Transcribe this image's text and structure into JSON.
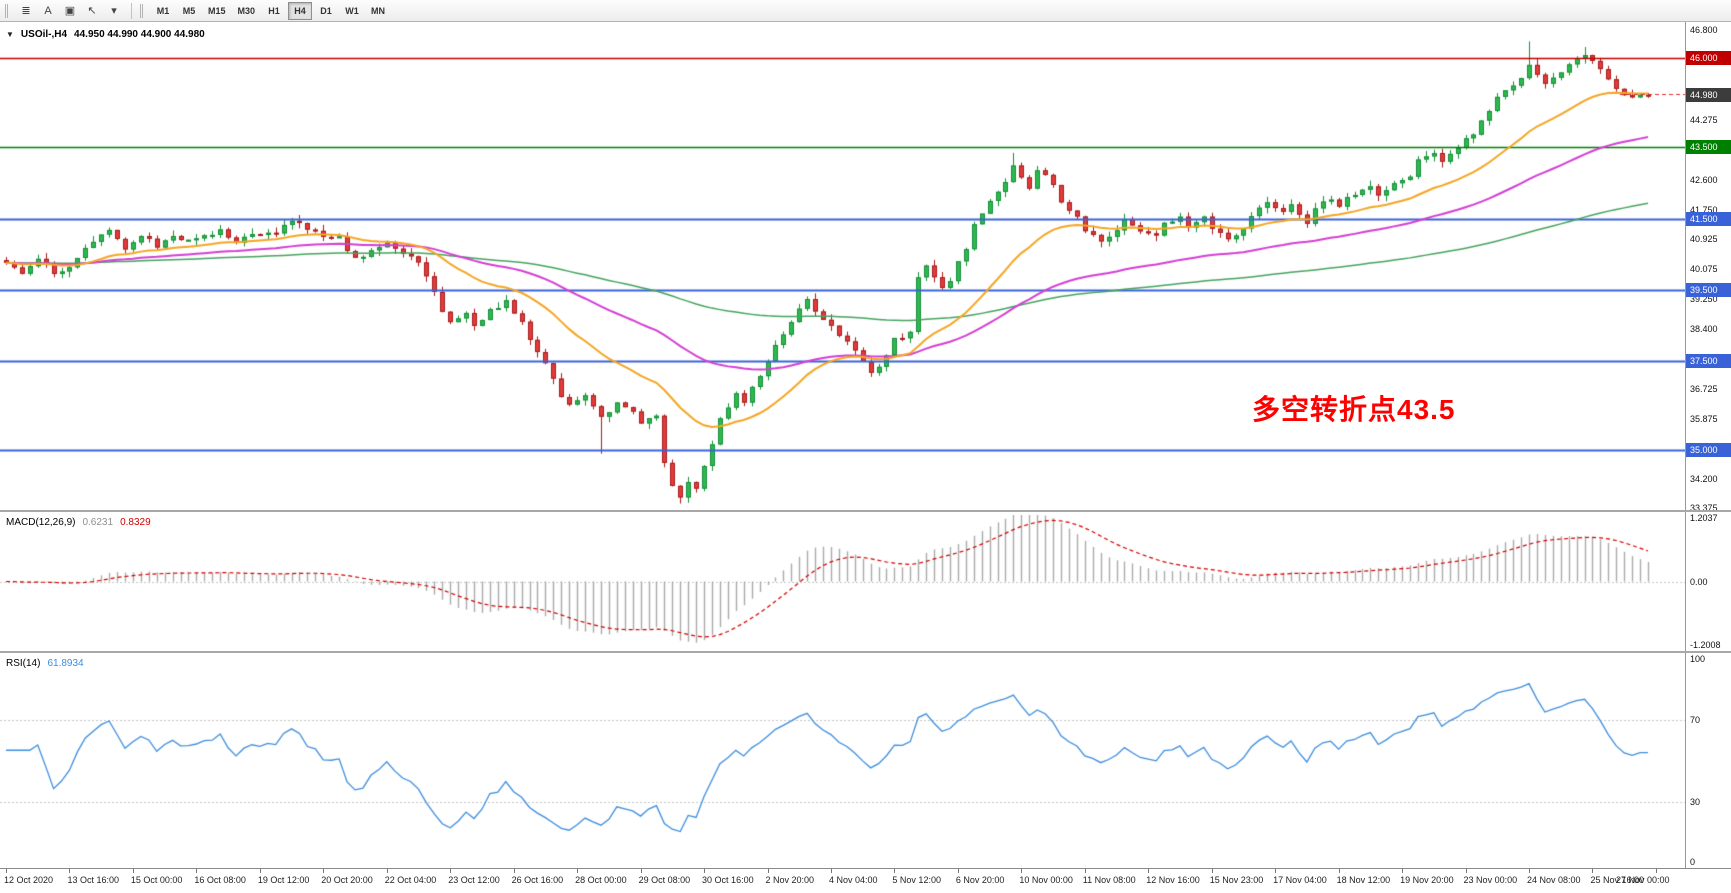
{
  "toolbar": {
    "tools": [
      {
        "name": "chart-list-icon",
        "glyph": "≣"
      },
      {
        "name": "text-label-icon",
        "glyph": "A"
      },
      {
        "name": "text-frame-icon",
        "glyph": "▣"
      },
      {
        "name": "cursor-tool-icon",
        "glyph": "↖"
      },
      {
        "name": "dropdown-arrow-icon",
        "glyph": "▾"
      }
    ],
    "timeframes": [
      {
        "label": "M1",
        "active": false
      },
      {
        "label": "M5",
        "active": false
      },
      {
        "label": "M15",
        "active": false
      },
      {
        "label": "M30",
        "active": false
      },
      {
        "label": "H1",
        "active": false
      },
      {
        "label": "H4",
        "active": true
      },
      {
        "label": "D1",
        "active": false
      },
      {
        "label": "W1",
        "active": false
      },
      {
        "label": "MN",
        "active": false
      }
    ]
  },
  "chart": {
    "header": {
      "collapse_glyph": "▼",
      "title": "USOil-,H4",
      "ohlc": "44.950 44.990 44.900 44.980"
    },
    "annotation": {
      "text": "多空转折点43.5",
      "color": "#ff0000"
    }
  },
  "chart_data": {
    "type": "candlestick",
    "symbol": "USOil-",
    "timeframe": "H4",
    "current": {
      "open": 44.95,
      "high": 44.99,
      "low": 44.9,
      "close": 44.98
    },
    "y_max": 46.8,
    "y_min": 33.375,
    "y_ticks": [
      "46.800",
      "45.950",
      "45.100",
      "44.275",
      "43.425",
      "42.600",
      "41.750",
      "40.925",
      "40.075",
      "39.250",
      "38.400",
      "37.550",
      "36.725",
      "35.875",
      "35.050",
      "34.200",
      "33.375"
    ],
    "levels": [
      {
        "price": 46.0,
        "badge": "46.000",
        "color": "#c00000",
        "width": 1.5,
        "kind": "hline"
      },
      {
        "price": 44.98,
        "badge": "44.980",
        "color": "#3c3c3c",
        "width": 1,
        "kind": "current"
      },
      {
        "price": 43.5,
        "badge": "43.500",
        "color": "#008000",
        "width": 1.5,
        "kind": "hline"
      },
      {
        "price": 41.5,
        "badge": "41.500",
        "color": "#3a62d8",
        "width": 2,
        "kind": "hline"
      },
      {
        "price": 39.5,
        "badge": "39.500",
        "color": "#3a62d8",
        "width": 2,
        "kind": "hline"
      },
      {
        "price": 37.5,
        "badge": "37.500",
        "color": "#3a62d8",
        "width": 2,
        "kind": "hline"
      },
      {
        "price": 35.0,
        "badge": "35.000",
        "color": "#3a62d8",
        "width": 2,
        "kind": "hline"
      }
    ],
    "colors": {
      "up_fill": "#2eb94e",
      "up_line": "#18903a",
      "down_fill": "#e23b3b",
      "down_line": "#a81d1d",
      "background": "#ffffff",
      "ask_line": "#e03030"
    },
    "n_candles": 208,
    "close_anchors": [
      [
        0,
        40.3
      ],
      [
        2,
        39.95
      ],
      [
        4,
        40.4
      ],
      [
        6,
        39.9
      ],
      [
        8,
        40.15
      ],
      [
        10,
        40.7
      ],
      [
        12,
        41.0
      ],
      [
        13,
        41.15
      ],
      [
        15,
        40.6
      ],
      [
        17,
        41.0
      ],
      [
        19,
        40.75
      ],
      [
        21,
        41.05
      ],
      [
        23,
        40.85
      ],
      [
        25,
        41.0
      ],
      [
        27,
        41.2
      ],
      [
        29,
        40.85
      ],
      [
        31,
        41.05
      ],
      [
        34,
        41.15
      ],
      [
        36,
        41.5
      ],
      [
        38,
        41.25
      ],
      [
        40,
        41.05
      ],
      [
        42,
        40.95
      ],
      [
        44,
        40.35
      ],
      [
        46,
        40.6
      ],
      [
        48,
        40.85
      ],
      [
        50,
        40.55
      ],
      [
        52,
        40.3
      ],
      [
        54,
        39.4
      ],
      [
        55,
        38.9
      ],
      [
        56,
        38.55
      ],
      [
        58,
        38.8
      ],
      [
        59,
        38.45
      ],
      [
        61,
        38.9
      ],
      [
        63,
        39.15
      ],
      [
        65,
        38.65
      ],
      [
        66,
        38.15
      ],
      [
        68,
        37.45
      ],
      [
        70,
        36.5
      ],
      [
        71,
        36.3
      ],
      [
        73,
        36.55
      ],
      [
        75,
        35.95
      ],
      [
        77,
        36.3
      ],
      [
        79,
        36.1
      ],
      [
        80,
        35.8
      ],
      [
        82,
        35.95
      ],
      [
        83,
        34.7
      ],
      [
        84,
        34.05
      ],
      [
        85,
        33.7
      ],
      [
        86,
        34.1
      ],
      [
        87,
        33.9
      ],
      [
        89,
        35.2
      ],
      [
        90,
        35.9
      ],
      [
        92,
        36.6
      ],
      [
        93,
        36.4
      ],
      [
        95,
        37.1
      ],
      [
        96,
        37.5
      ],
      [
        98,
        38.3
      ],
      [
        100,
        39.0
      ],
      [
        101,
        39.2
      ],
      [
        103,
        38.7
      ],
      [
        105,
        38.2
      ],
      [
        106,
        38.0
      ],
      [
        108,
        37.5
      ],
      [
        109,
        37.2
      ],
      [
        111,
        37.6
      ],
      [
        112,
        38.1
      ],
      [
        114,
        38.3
      ],
      [
        115,
        39.9
      ],
      [
        116,
        40.15
      ],
      [
        118,
        39.5
      ],
      [
        119,
        39.8
      ],
      [
        121,
        40.7
      ],
      [
        122,
        41.3
      ],
      [
        124,
        42.0
      ],
      [
        126,
        42.5
      ],
      [
        127,
        43.0
      ],
      [
        129,
        42.4
      ],
      [
        130,
        42.9
      ],
      [
        132,
        42.5
      ],
      [
        133,
        41.9
      ],
      [
        135,
        41.5
      ],
      [
        136,
        41.1
      ],
      [
        138,
        40.9
      ],
      [
        140,
        41.2
      ],
      [
        141,
        41.45
      ],
      [
        143,
        41.2
      ],
      [
        145,
        41.0
      ],
      [
        146,
        41.35
      ],
      [
        148,
        41.5
      ],
      [
        149,
        41.3
      ],
      [
        151,
        41.55
      ],
      [
        152,
        41.2
      ],
      [
        154,
        40.9
      ],
      [
        156,
        41.2
      ],
      [
        157,
        41.6
      ],
      [
        159,
        41.9
      ],
      [
        161,
        41.7
      ],
      [
        162,
        41.9
      ],
      [
        164,
        41.4
      ],
      [
        165,
        41.8
      ],
      [
        167,
        42.1
      ],
      [
        168,
        41.9
      ],
      [
        170,
        42.2
      ],
      [
        172,
        42.4
      ],
      [
        173,
        42.2
      ],
      [
        175,
        42.5
      ],
      [
        177,
        42.7
      ],
      [
        178,
        43.2
      ],
      [
        180,
        43.4
      ],
      [
        181,
        43.1
      ],
      [
        183,
        43.5
      ],
      [
        185,
        43.9
      ],
      [
        186,
        44.2
      ],
      [
        188,
        44.9
      ],
      [
        189,
        45.1
      ],
      [
        191,
        45.45
      ],
      [
        192,
        45.85
      ],
      [
        194,
        45.35
      ],
      [
        196,
        45.6
      ],
      [
        198,
        46.05
      ],
      [
        199,
        46.15
      ],
      [
        201,
        45.7
      ],
      [
        203,
        45.15
      ],
      [
        205,
        44.9
      ],
      [
        207,
        44.98
      ]
    ],
    "wick_overrides": {
      "75": {
        "low": 34.9
      },
      "85": {
        "low": 33.5
      },
      "127": {
        "high": 43.35
      },
      "192": {
        "high": 46.48
      },
      "199": {
        "high": 46.32
      }
    },
    "ma_lines": [
      {
        "name": "ma-fast-orange",
        "color": "#f5a623",
        "period": 21,
        "width": 2
      },
      {
        "name": "ma-mid-magenta",
        "color": "#d43fd4",
        "period": 55,
        "width": 2
      },
      {
        "name": "ma-slow-green",
        "color": "#46a35e",
        "period": 144,
        "width": 1.5
      }
    ],
    "time_labels": [
      "12 Oct 2020",
      "13 Oct 16:00",
      "15 Oct 00:00",
      "16 Oct 08:00",
      "19 Oct 12:00",
      "20 Oct 20:00",
      "22 Oct 04:00",
      "23 Oct 12:00",
      "26 Oct 16:00",
      "28 Oct 00:00",
      "29 Oct 08:00",
      "30 Oct 16:00",
      "2 Nov 20:00",
      "4 Nov 04:00",
      "5 Nov 12:00",
      "6 Nov 20:00",
      "10 Nov 00:00",
      "11 Nov 08:00",
      "12 Nov 16:00",
      "15 Nov 23:00",
      "17 Nov 04:00",
      "18 Nov 12:00",
      "19 Nov 20:00",
      "23 Nov 00:00",
      "24 Nov 08:00",
      "25 Nov 16:00",
      "27 Nov 00:00"
    ],
    "label_every": 8,
    "macd": {
      "title": "MACD(12,26,9)",
      "value_main": "0.6231",
      "value_signal": "0.8329",
      "fast": 12,
      "slow": 26,
      "signal": 9,
      "axis": [
        "1.2037",
        "0.00",
        "-1.2008"
      ],
      "hist_color": "#ababab",
      "signal_color": "#d40000",
      "range": 1.21
    },
    "rsi": {
      "title": "RSI(14)",
      "value": "61.8934",
      "period": 14,
      "axis": [
        "100",
        "70",
        "30",
        "0"
      ],
      "line_color": "#3e8ede",
      "level_lines": [
        70,
        30
      ]
    }
  }
}
